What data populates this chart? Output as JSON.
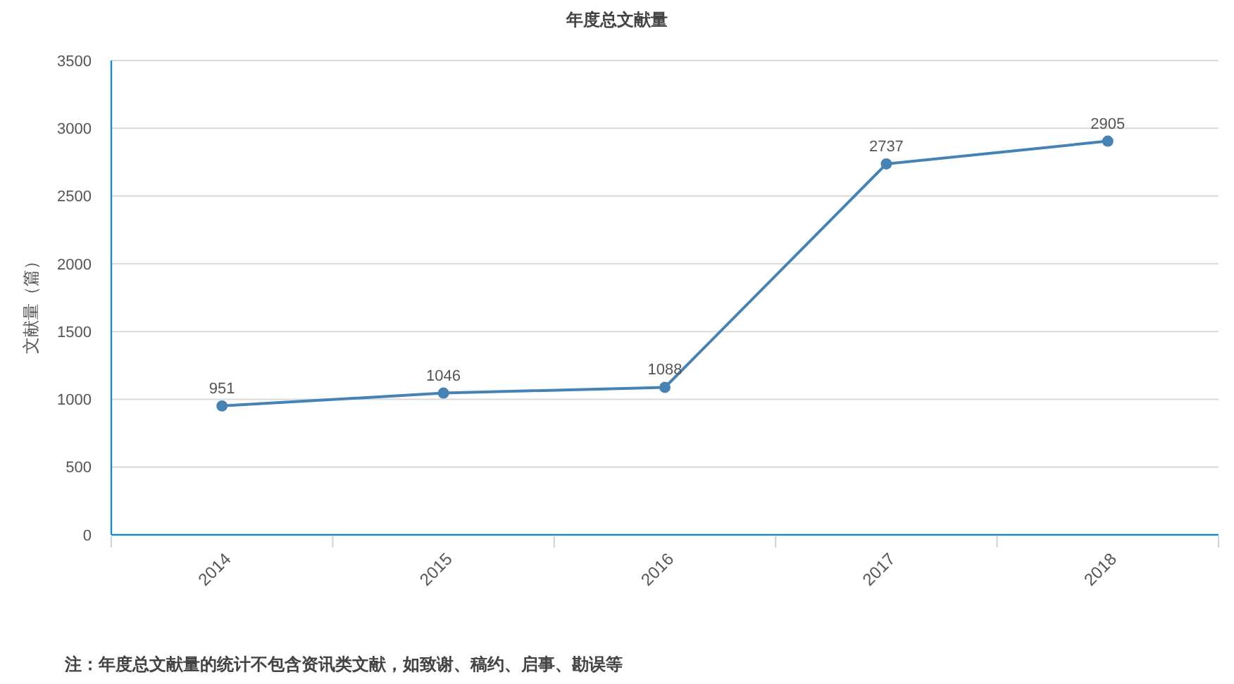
{
  "chart_data": {
    "type": "line",
    "title": "年度总文献量",
    "ylabel": "文献量（篇）",
    "categories": [
      "2014",
      "2015",
      "2016",
      "2017",
      "2018"
    ],
    "values": [
      951,
      1046,
      1088,
      2737,
      2905
    ],
    "color": "#4682b4",
    "ylim": [
      0,
      3500
    ],
    "yticks": [
      0,
      500,
      1000,
      1500,
      2000,
      2500,
      3000,
      3500
    ],
    "grid": "y",
    "marker": "circle",
    "line_style": "solid",
    "data_labels": true,
    "annotations": [
      "注：年度总文献量的统计不包含资讯类文献，如致谢、稿约、启事、勘误等"
    ]
  }
}
